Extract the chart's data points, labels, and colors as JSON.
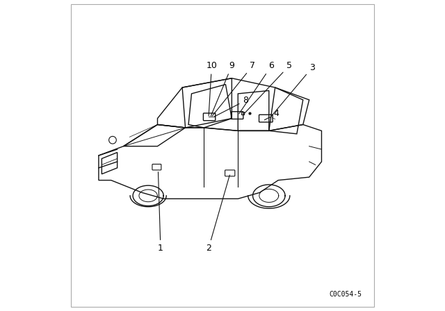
{
  "background_color": "#ffffff",
  "border_color": "#cccccc",
  "diagram_code": "C0C054-5",
  "line_color": "#111111",
  "text_color": "#000000",
  "font_size_labels": 9,
  "font_size_code": 7
}
